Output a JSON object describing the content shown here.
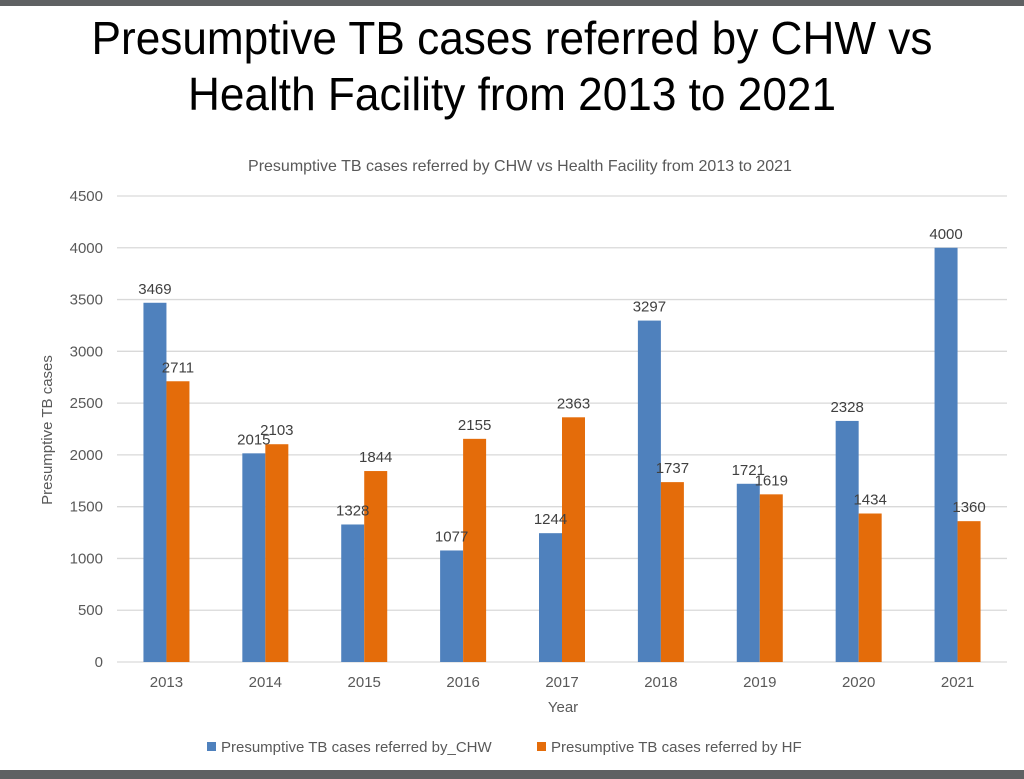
{
  "slide": {
    "title_line1": "Presumptive TB cases referred by CHW vs",
    "title_line2": "Health Facility from 2013 to 2021"
  },
  "chart_data": {
    "type": "bar",
    "title": "Presumptive TB cases referred by CHW vs Health Facility from 2013 to 2021",
    "xlabel": "Year",
    "ylabel": "Presumptive TB cases",
    "ylim": [
      0,
      4500
    ],
    "yticks": [
      0,
      500,
      1000,
      1500,
      2000,
      2500,
      3000,
      3500,
      4000,
      4500
    ],
    "grid": true,
    "legend_position": "bottom",
    "categories": [
      "2013",
      "2014",
      "2015",
      "2016",
      "2017",
      "2018",
      "2019",
      "2020",
      "2021"
    ],
    "series": [
      {
        "name": "Presumptive TB cases referred by_CHW",
        "color": "#4f81bd",
        "values": [
          3469,
          2015,
          1328,
          1077,
          1244,
          3297,
          1721,
          2328,
          4000
        ]
      },
      {
        "name": "Presumptive TB cases referred by HF",
        "color": "#e46c0a",
        "values": [
          2711,
          2103,
          1844,
          2155,
          2363,
          1737,
          1619,
          1434,
          1360
        ]
      }
    ]
  }
}
